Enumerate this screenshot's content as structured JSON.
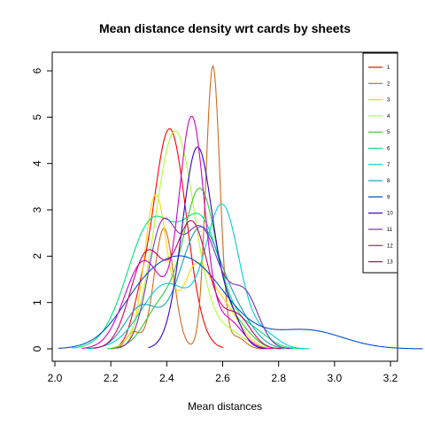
{
  "chart_data": {
    "type": "line",
    "title": "Mean distance density wrt cards by sheets",
    "xlabel": "Mean distances",
    "ylabel": "",
    "xlim": [
      2.0,
      3.2
    ],
    "ylim": [
      0,
      6.3
    ],
    "xticks": [
      "2.0",
      "2.2",
      "2.4",
      "2.6",
      "2.8",
      "3.0",
      "3.2"
    ],
    "yticks": [
      "0",
      "1",
      "2",
      "3",
      "4",
      "5",
      "6"
    ],
    "legend_position": "top-right",
    "series": [
      {
        "name": "1",
        "color": "#FF0000",
        "peaks": [
          [
            2.41,
            4.75,
            0.06
          ],
          [
            2.3,
            0.45,
            0.03
          ]
        ]
      },
      {
        "name": "2",
        "color": "#D2691E",
        "peaks": [
          [
            2.565,
            6.1,
            0.025
          ],
          [
            2.39,
            2.6,
            0.035
          ],
          [
            2.28,
            0.35,
            0.025
          ],
          [
            2.65,
            0.25,
            0.03
          ]
        ]
      },
      {
        "name": "3",
        "color": "#FFD700",
        "peaks": [
          [
            2.36,
            3.3,
            0.04
          ],
          [
            2.5,
            1.6,
            0.05
          ],
          [
            2.6,
            0.9,
            0.06
          ]
        ]
      },
      {
        "name": "4",
        "color": "#ADFF2F",
        "peaks": [
          [
            2.43,
            4.7,
            0.07
          ],
          [
            2.62,
            0.35,
            0.06
          ]
        ]
      },
      {
        "name": "5",
        "color": "#32CD32",
        "peaks": [
          [
            2.52,
            3.4,
            0.06
          ],
          [
            2.38,
            0.9,
            0.06
          ],
          [
            2.66,
            0.4,
            0.05
          ]
        ]
      },
      {
        "name": "6",
        "color": "#00E676",
        "peaks": [
          [
            2.35,
            2.75,
            0.09
          ],
          [
            2.53,
            2.45,
            0.07
          ],
          [
            2.7,
            0.4,
            0.06
          ]
        ]
      },
      {
        "name": "7",
        "color": "#00CED1",
        "peaks": [
          [
            2.6,
            3.0,
            0.06
          ],
          [
            2.4,
            1.4,
            0.09
          ],
          [
            2.75,
            0.3,
            0.05
          ]
        ]
      },
      {
        "name": "8",
        "color": "#17A2B8",
        "peaks": [
          [
            2.52,
            2.6,
            0.075
          ],
          [
            2.31,
            0.9,
            0.06
          ],
          [
            2.66,
            0.5,
            0.06
          ]
        ]
      },
      {
        "name": "9",
        "color": "#0050C8",
        "peaks": [
          [
            2.47,
            1.9,
            0.14
          ],
          [
            2.3,
            0.5,
            0.09
          ],
          [
            2.9,
            0.4,
            0.13
          ]
        ]
      },
      {
        "name": "10",
        "color": "#3300CC",
        "peaks": [
          [
            2.51,
            4.35,
            0.055
          ],
          [
            2.63,
            0.6,
            0.04
          ]
        ]
      },
      {
        "name": "11",
        "color": "#7B2FBE",
        "peaks": [
          [
            2.38,
            2.4,
            0.05
          ],
          [
            2.52,
            2.6,
            0.07
          ],
          [
            2.68,
            1.1,
            0.05
          ]
        ]
      },
      {
        "name": "12",
        "color": "#CC00CC",
        "peaks": [
          [
            2.49,
            4.9,
            0.045
          ],
          [
            2.32,
            1.9,
            0.07
          ],
          [
            2.62,
            0.6,
            0.05
          ]
        ]
      },
      {
        "name": "13",
        "color": "#CC0066",
        "peaks": [
          [
            2.33,
            2.05,
            0.06
          ],
          [
            2.49,
            2.7,
            0.06
          ],
          [
            2.65,
            0.7,
            0.05
          ]
        ]
      }
    ]
  }
}
